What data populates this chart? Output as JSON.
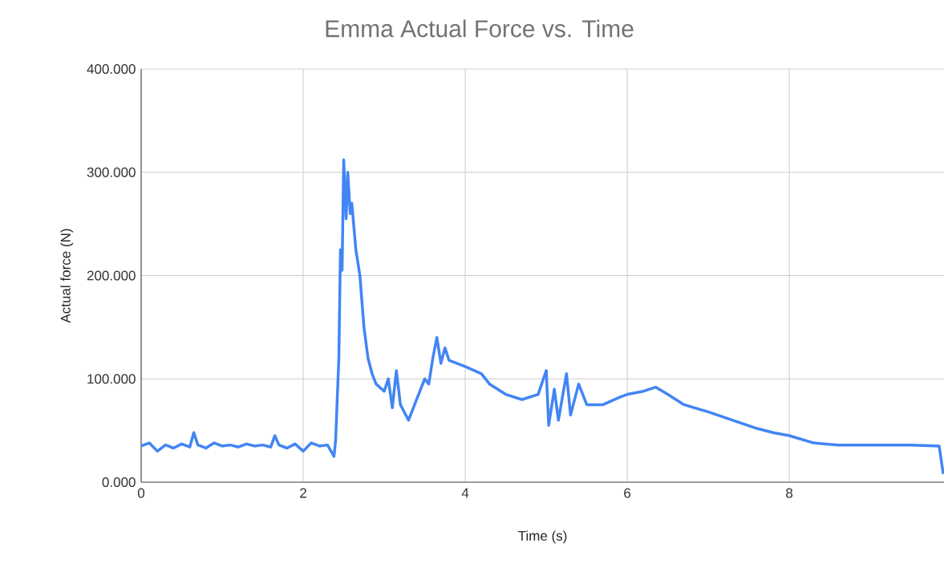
{
  "chart_data": {
    "type": "line",
    "title": "Emma Actual Force vs. Time",
    "xlabel": "Time (s)",
    "ylabel": "Actual force (N)",
    "xlim": [
      0,
      9.91
    ],
    "ylim": [
      0,
      400
    ],
    "xticks": [
      0,
      2,
      4,
      6,
      8
    ],
    "yticks": [
      {
        "value": 0,
        "label": "0.000"
      },
      {
        "value": 100,
        "label": "100.000"
      },
      {
        "value": 200,
        "label": "200.000"
      },
      {
        "value": 300,
        "label": "300.000"
      },
      {
        "value": 400,
        "label": "400.000"
      }
    ],
    "grid": true,
    "series": [
      {
        "color": "#4285f4",
        "x": [
          0,
          0.1,
          0.2,
          0.3,
          0.4,
          0.5,
          0.6,
          0.65,
          0.7,
          0.8,
          0.9,
          1.0,
          1.1,
          1.2,
          1.3,
          1.4,
          1.5,
          1.6,
          1.65,
          1.7,
          1.8,
          1.9,
          2.0,
          2.1,
          2.2,
          2.3,
          2.38,
          2.4,
          2.44,
          2.46,
          2.48,
          2.5,
          2.53,
          2.55,
          2.58,
          2.6,
          2.65,
          2.7,
          2.75,
          2.8,
          2.85,
          2.9,
          3.0,
          3.05,
          3.1,
          3.15,
          3.2,
          3.3,
          3.35,
          3.4,
          3.5,
          3.55,
          3.6,
          3.65,
          3.7,
          3.75,
          3.8,
          4.0,
          4.2,
          4.3,
          4.5,
          4.7,
          4.9,
          5.0,
          5.03,
          5.1,
          5.15,
          5.25,
          5.3,
          5.4,
          5.5,
          5.7,
          5.9,
          6.0,
          6.2,
          6.35,
          6.5,
          6.7,
          7.0,
          7.3,
          7.6,
          7.8,
          8.0,
          8.3,
          8.6,
          9.0,
          9.5,
          9.85,
          9.9
        ],
        "values": [
          35,
          38,
          30,
          36,
          33,
          37,
          34,
          48,
          36,
          33,
          38,
          35,
          36,
          34,
          37,
          35,
          36,
          34,
          45,
          36,
          33,
          37,
          30,
          38,
          35,
          36,
          25,
          40,
          120,
          225,
          205,
          312,
          255,
          300,
          260,
          270,
          225,
          200,
          150,
          120,
          105,
          95,
          88,
          100,
          72,
          108,
          75,
          60,
          70,
          80,
          100,
          95,
          120,
          140,
          115,
          130,
          118,
          112,
          105,
          95,
          85,
          80,
          85,
          108,
          55,
          90,
          60,
          105,
          65,
          95,
          75,
          75,
          82,
          85,
          88,
          92,
          85,
          75,
          68,
          60,
          52,
          48,
          45,
          38,
          36,
          36,
          36,
          35,
          8
        ]
      }
    ]
  }
}
